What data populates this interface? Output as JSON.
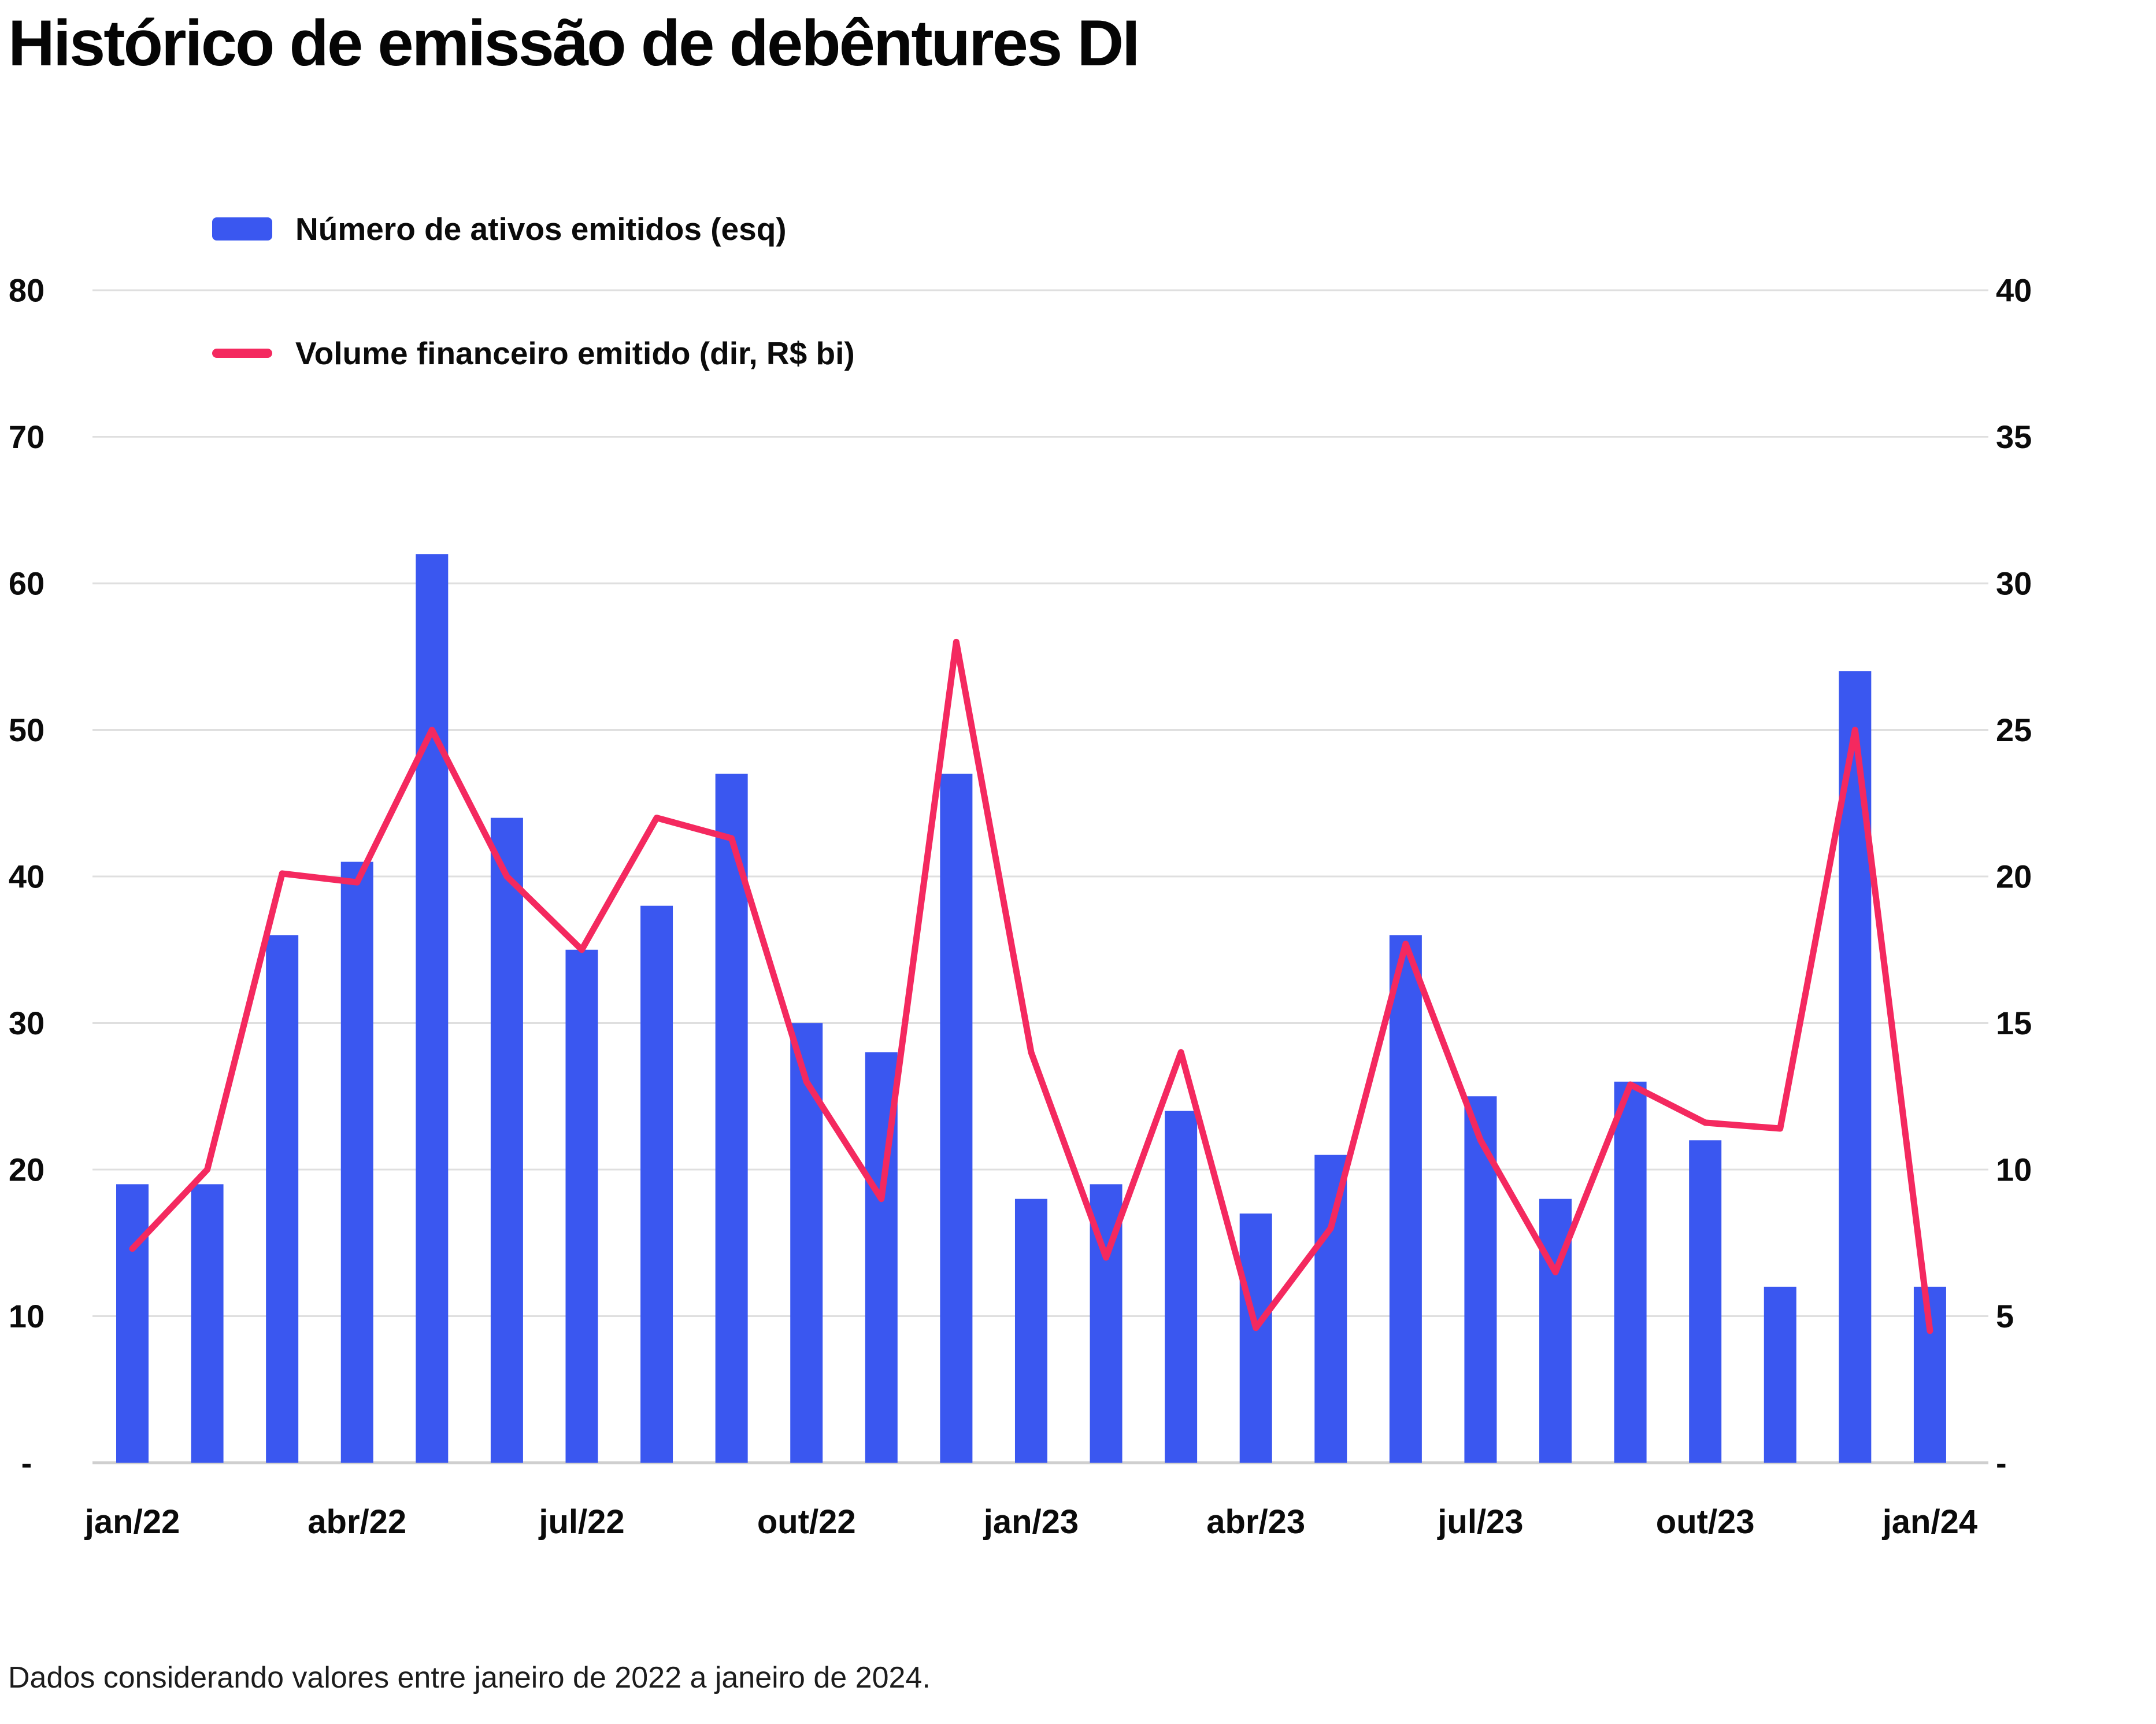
{
  "title": "Histórico de emissão de debêntures DI",
  "footer": "Dados considerando valores entre janeiro de 2022 a janeiro de 2024.",
  "legend": [
    {
      "label": "Número de ativos emitidos (esq)",
      "swatch": "bar-swatch-icon"
    },
    {
      "label": "Volume financeiro emitido (dir, R$ bi)",
      "swatch": "line-swatch-icon"
    }
  ],
  "colors": {
    "bar": "#3A57F0",
    "line": "#F4295F",
    "grid": "#DFDFDF",
    "baseline": "#CFCFCF",
    "text": "#0B0B0B"
  },
  "chart_data": {
    "type": "bar+line",
    "title": "Histórico de emissão de debêntures DI",
    "categories": [
      "jan/22",
      "fev/22",
      "mar/22",
      "abr/22",
      "mai/22",
      "jun/22",
      "jul/22",
      "ago/22",
      "set/22",
      "out/22",
      "nov/22",
      "dez/22",
      "jan/23",
      "fev/23",
      "mar/23",
      "abr/23",
      "mai/23",
      "jun/23",
      "jul/23",
      "ago/23",
      "set/23",
      "out/23",
      "nov/23",
      "dez/23",
      "jan/24"
    ],
    "x_tick_labels": [
      "jan/22",
      "abr/22",
      "jul/22",
      "out/22",
      "jan/23",
      "abr/23",
      "jul/23",
      "out/23",
      "jan/24"
    ],
    "series": [
      {
        "name": "Número de ativos emitidos (esq)",
        "type": "bar",
        "axis": "left",
        "values": [
          19,
          19,
          36,
          41,
          62,
          44,
          35,
          38,
          47,
          30,
          28,
          47,
          18,
          19,
          24,
          17,
          21,
          36,
          25,
          18,
          26,
          22,
          12,
          54,
          12
        ]
      },
      {
        "name": "Volume financeiro emitido (dir, R$ bi)",
        "type": "line",
        "axis": "right",
        "values": [
          7.3,
          10,
          20.1,
          19.8,
          25,
          20,
          17.5,
          22,
          21.3,
          13,
          9,
          28,
          14,
          7,
          14,
          4.6,
          8,
          17.7,
          11,
          6.5,
          12.9,
          11.6,
          11.4,
          25,
          4.5
        ]
      }
    ],
    "left_axis": {
      "ticks": [
        80,
        70,
        60,
        50,
        40,
        30,
        20,
        10,
        0
      ],
      "zero_label": "-",
      "range": [
        0,
        80
      ]
    },
    "right_axis": {
      "ticks": [
        40,
        35,
        30,
        25,
        20,
        15,
        10,
        5,
        0
      ],
      "zero_label": "-",
      "range": [
        0,
        40
      ]
    },
    "grid": true,
    "legend_position": "top-left"
  }
}
